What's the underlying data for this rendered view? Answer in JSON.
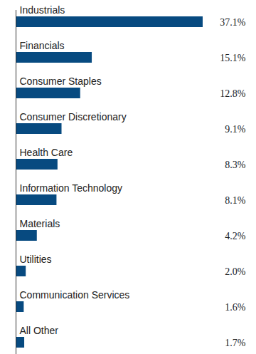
{
  "chart_data": {
    "type": "bar",
    "orientation": "horizontal",
    "categories": [
      "Industrials",
      "Financials",
      "Consumer Staples",
      "Consumer Discretionary",
      "Health Care",
      "Information Technology",
      "Materials",
      "Utilities",
      "Communication Services",
      "All Other"
    ],
    "values": [
      37.1,
      15.1,
      12.8,
      9.1,
      8.3,
      8.1,
      4.2,
      2.0,
      1.6,
      1.7
    ],
    "value_labels": [
      "37.1%",
      "15.1%",
      "12.8%",
      "9.1%",
      "8.3%",
      "8.1%",
      "4.2%",
      "2.0%",
      "1.6%",
      "1.7%"
    ],
    "color": "#074a80",
    "data_labels": true,
    "tick_labels": false,
    "grid": false
  }
}
